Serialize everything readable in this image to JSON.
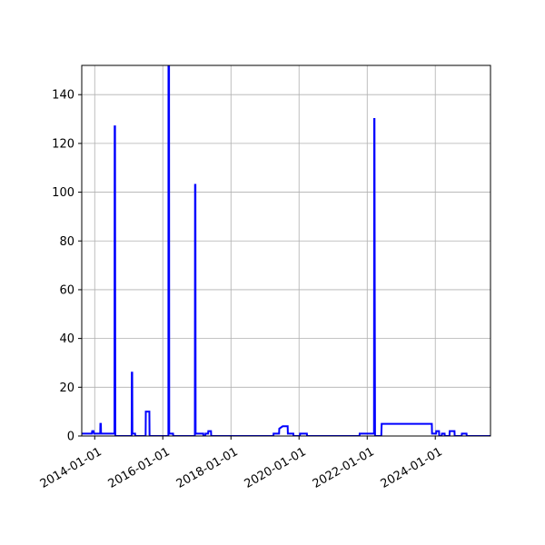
{
  "chart_data": {
    "type": "line",
    "title": "",
    "xlabel": "",
    "ylabel": "",
    "x_axis_type": "date",
    "xlim": [
      "2013-08-15",
      "2025-08-15"
    ],
    "ylim": [
      0,
      152
    ],
    "grid": true,
    "legend": "none",
    "line_color": "#0000ff",
    "x_ticks": [
      "2014-01-01",
      "2016-01-01",
      "2018-01-01",
      "2020-01-01",
      "2022-01-01",
      "2024-01-01"
    ],
    "y_ticks": [
      0,
      20,
      40,
      60,
      80,
      100,
      120,
      140
    ],
    "series": [
      {
        "name": "",
        "points": [
          [
            "2013-08-15",
            1
          ],
          [
            "2013-12-01",
            1
          ],
          [
            "2013-12-05",
            2
          ],
          [
            "2013-12-20",
            2
          ],
          [
            "2013-12-24",
            1
          ],
          [
            "2014-03-01",
            1
          ],
          [
            "2014-03-03",
            5
          ],
          [
            "2014-03-08",
            5
          ],
          [
            "2014-03-10",
            1
          ],
          [
            "2014-08-01",
            1
          ],
          [
            "2014-08-03",
            127
          ],
          [
            "2014-08-07",
            127
          ],
          [
            "2014-08-10",
            0
          ],
          [
            "2015-02-01",
            0
          ],
          [
            "2015-02-03",
            26
          ],
          [
            "2015-02-07",
            26
          ],
          [
            "2015-02-09",
            1
          ],
          [
            "2015-03-10",
            1
          ],
          [
            "2015-03-12",
            0
          ],
          [
            "2015-07-01",
            0
          ],
          [
            "2015-07-03",
            10
          ],
          [
            "2015-08-10",
            10
          ],
          [
            "2015-08-12",
            0
          ],
          [
            "2016-03-01",
            0
          ],
          [
            "2016-03-02",
            152
          ],
          [
            "2016-03-08",
            152
          ],
          [
            "2016-03-10",
            1
          ],
          [
            "2016-04-20",
            1
          ],
          [
            "2016-04-22",
            0
          ],
          [
            "2016-12-10",
            0
          ],
          [
            "2016-12-12",
            103
          ],
          [
            "2016-12-16",
            103
          ],
          [
            "2016-12-18",
            1
          ],
          [
            "2017-03-10",
            1
          ],
          [
            "2017-03-12",
            0
          ],
          [
            "2017-04-01",
            0
          ],
          [
            "2017-04-03",
            1
          ],
          [
            "2017-05-01",
            1
          ],
          [
            "2017-05-03",
            2
          ],
          [
            "2017-06-01",
            2
          ],
          [
            "2017-06-03",
            0
          ],
          [
            "2019-04-01",
            0
          ],
          [
            "2019-04-03",
            1
          ],
          [
            "2019-06-01",
            1
          ],
          [
            "2019-06-03",
            3
          ],
          [
            "2019-07-10",
            4
          ],
          [
            "2019-09-01",
            4
          ],
          [
            "2019-09-03",
            1
          ],
          [
            "2019-11-01",
            1
          ],
          [
            "2019-11-03",
            0
          ],
          [
            "2020-01-10",
            0
          ],
          [
            "2020-01-12",
            1
          ],
          [
            "2020-03-25",
            1
          ],
          [
            "2020-03-27",
            0
          ],
          [
            "2021-10-10",
            0
          ],
          [
            "2021-10-12",
            1
          ],
          [
            "2022-01-01",
            1
          ],
          [
            "2022-03-15",
            1
          ],
          [
            "2022-03-17",
            130
          ],
          [
            "2022-03-20",
            130
          ],
          [
            "2022-03-23",
            55
          ],
          [
            "2022-03-26",
            0
          ],
          [
            "2022-06-01",
            0
          ],
          [
            "2022-06-05",
            5
          ],
          [
            "2023-11-25",
            5
          ],
          [
            "2023-11-27",
            1
          ],
          [
            "2024-01-10",
            1
          ],
          [
            "2024-01-12",
            2
          ],
          [
            "2024-02-10",
            2
          ],
          [
            "2024-02-12",
            0
          ],
          [
            "2024-03-10",
            0
          ],
          [
            "2024-03-12",
            1
          ],
          [
            "2024-04-10",
            1
          ],
          [
            "2024-04-12",
            0
          ],
          [
            "2024-06-01",
            0
          ],
          [
            "2024-06-03",
            2
          ],
          [
            "2024-07-25",
            2
          ],
          [
            "2024-07-27",
            0
          ],
          [
            "2024-10-10",
            0
          ],
          [
            "2024-10-12",
            1
          ],
          [
            "2024-12-01",
            1
          ],
          [
            "2024-12-03",
            0
          ],
          [
            "2025-08-15",
            0
          ]
        ]
      }
    ]
  }
}
